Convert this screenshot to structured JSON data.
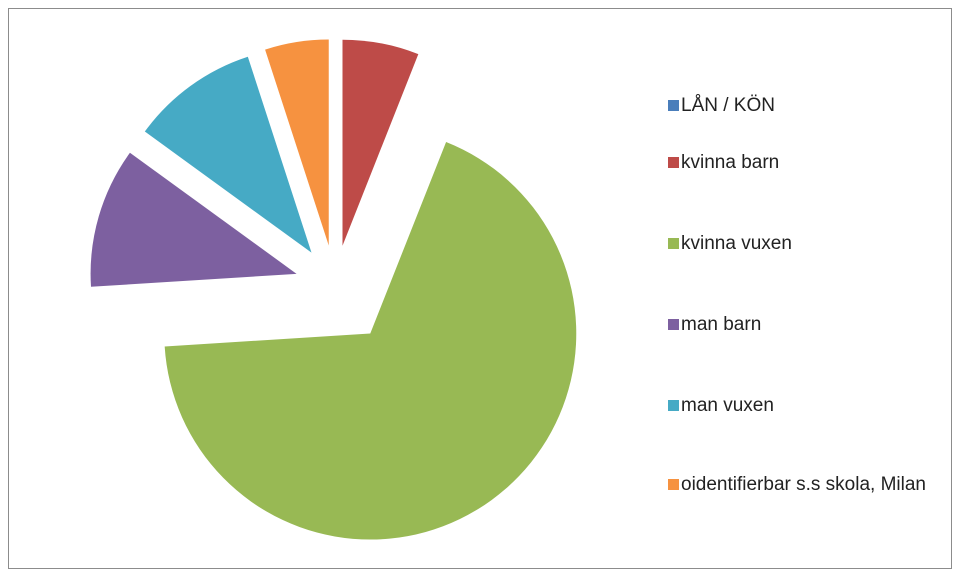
{
  "chart_data": {
    "type": "pie",
    "categories": [
      "LÅN  / KÖN",
      "kvinna barn",
      "kvinna vuxen",
      "man barn",
      "man vuxen",
      "oidentifierbar s.s skola, Milan"
    ],
    "values": [
      0,
      6,
      68,
      11,
      10,
      5
    ],
    "colors": [
      "#4a7ebb",
      "#be4b48",
      "#98b954",
      "#7d60a0",
      "#46aac5",
      "#f69240"
    ],
    "legend": "right"
  }
}
